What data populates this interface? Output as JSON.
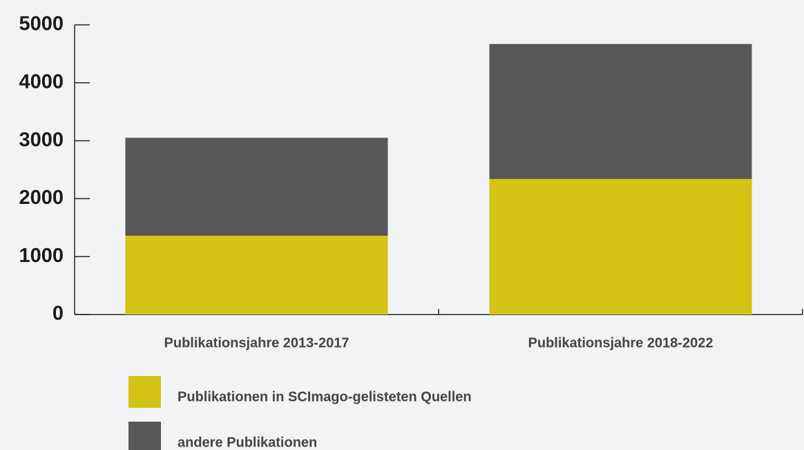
{
  "chart_data": {
    "type": "stacked_bar",
    "categories": [
      "Publikationsjahre 2013-2017",
      "Publikationsjahre 2018-2022"
    ],
    "series": [
      {
        "name": "Publikationen in SCImago-gelisteten Quellen",
        "color": "#d4c416",
        "values": [
          1360,
          2340
        ]
      },
      {
        "name": "andere Publikationen",
        "color": "#575757",
        "values": [
          1690,
          2330
        ]
      }
    ],
    "ylim": [
      0,
      5000
    ],
    "yticks": [
      0,
      1000,
      2000,
      3000,
      4000,
      5000
    ]
  }
}
